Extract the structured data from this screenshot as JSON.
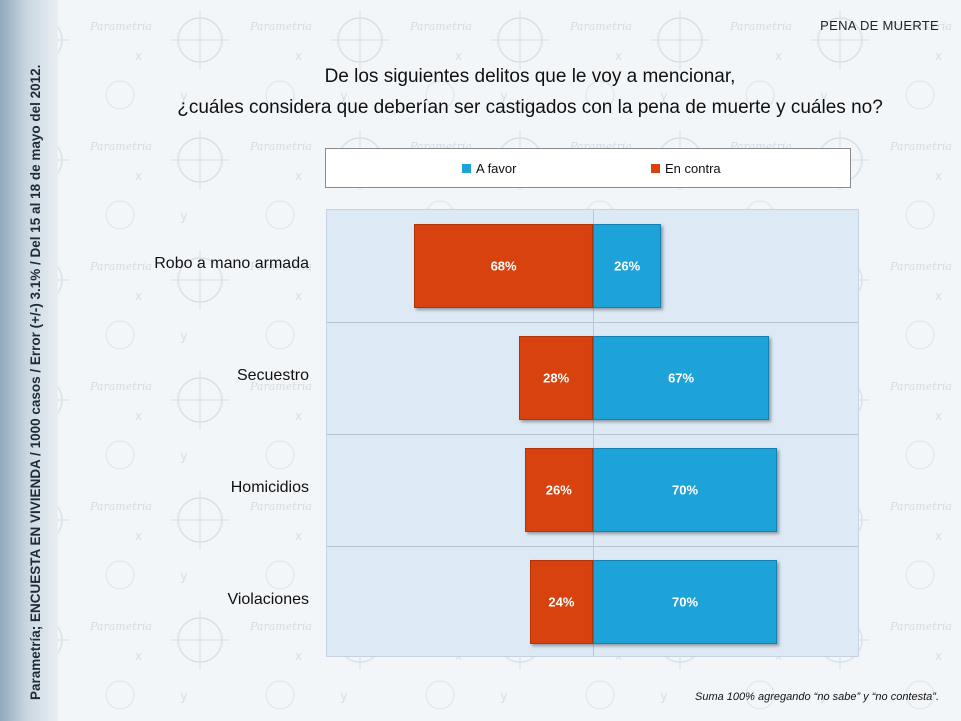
{
  "side_note": "Parametría; ENCUESTA EN VIVIENDA / 1000 casos / Error (+/-) 3.1% / Del 15 al 18 de mayo del 2012.",
  "section_title": "PENA DE MUERTE",
  "question_line1": "De los siguientes delitos que le voy a mencionar,",
  "question_line2": "¿cuáles considera que deberían ser castigados con la pena de muerte y cuáles no?",
  "footnote": "Suma 100%  agregando “no sabe” y “no contesta”.",
  "colors": {
    "favor": "#1ea3d9",
    "contra": "#d7420e",
    "plot_bg": "#dde9f5"
  },
  "chart_data": {
    "type": "bar",
    "orientation": "horizontal-diverging",
    "categories": [
      "Robo a mano armada",
      "Secuestro",
      "Homicidios",
      "Violaciones"
    ],
    "series": [
      {
        "name": "A favor",
        "values": [
          26,
          67,
          70,
          70
        ],
        "labels": [
          "26%",
          "67%",
          "70%",
          "70%"
        ]
      },
      {
        "name": "En contra",
        "values": [
          68,
          28,
          26,
          24
        ],
        "labels": [
          "68%",
          "28%",
          "26%",
          "24%"
        ]
      }
    ],
    "legend": "top",
    "grid": false
  }
}
